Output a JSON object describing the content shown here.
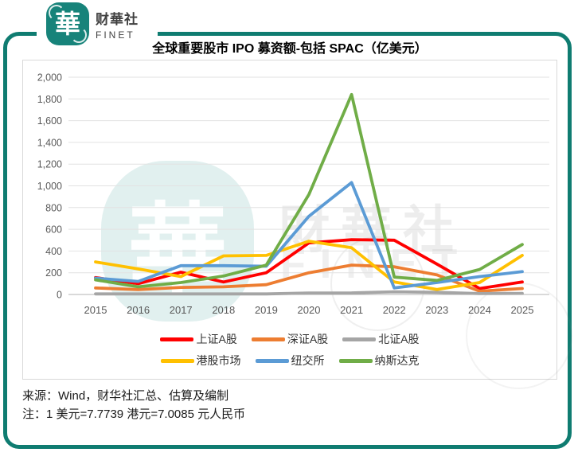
{
  "brand": {
    "logo_glyph": "華",
    "name_cn": "财華社",
    "name_en": "FINET",
    "teal": "#0f7c71"
  },
  "watermark": {
    "seal_glyph": "華",
    "text_cn": "財華社",
    "text_en": "FINET"
  },
  "chart": {
    "title": "全球重要股市 IPO 募资额-包括 SPAC（亿美元）"
  },
  "chart_data": {
    "type": "line",
    "title": "全球重要股市 IPO 募资额-包括 SPAC（亿美元）",
    "unit": "亿美元",
    "x": [
      "2015",
      "2016",
      "2017",
      "2018",
      "2019",
      "2020",
      "2021",
      "2022",
      "2023",
      "2024",
      "2025"
    ],
    "ylim": [
      0,
      2000
    ],
    "ytick_interval": 200,
    "grid": true,
    "legend_position": "bottom",
    "series": [
      {
        "name": "上证A股",
        "color": "#FF0000",
        "values": [
          155,
          100,
          205,
          115,
          200,
          475,
          505,
          500,
          280,
          55,
          115
        ]
      },
      {
        "name": "深证A股",
        "color": "#ED7D31",
        "values": [
          60,
          45,
          65,
          70,
          90,
          200,
          270,
          255,
          180,
          30,
          55
        ]
      },
      {
        "name": "北证A股",
        "color": "#A5A5A5",
        "values": [
          5,
          5,
          5,
          5,
          5,
          14,
          15,
          25,
          20,
          8,
          10
        ]
      },
      {
        "name": "港股市场",
        "color": "#FFC000",
        "values": [
          300,
          235,
          165,
          355,
          360,
          490,
          430,
          115,
          46,
          110,
          360
        ]
      },
      {
        "name": "纽交所",
        "color": "#5B9BD5",
        "values": [
          150,
          120,
          265,
          265,
          260,
          720,
          1030,
          60,
          110,
          165,
          210
        ]
      },
      {
        "name": "纳斯达克",
        "color": "#70AD47",
        "values": [
          135,
          70,
          110,
          170,
          270,
          920,
          1840,
          160,
          130,
          230,
          460
        ]
      }
    ]
  },
  "notes": {
    "source": "来源：Wind，财华社汇总、估算及编制",
    "fx": "注：1 美元=7.7739 港元=7.0085 元人民币"
  }
}
